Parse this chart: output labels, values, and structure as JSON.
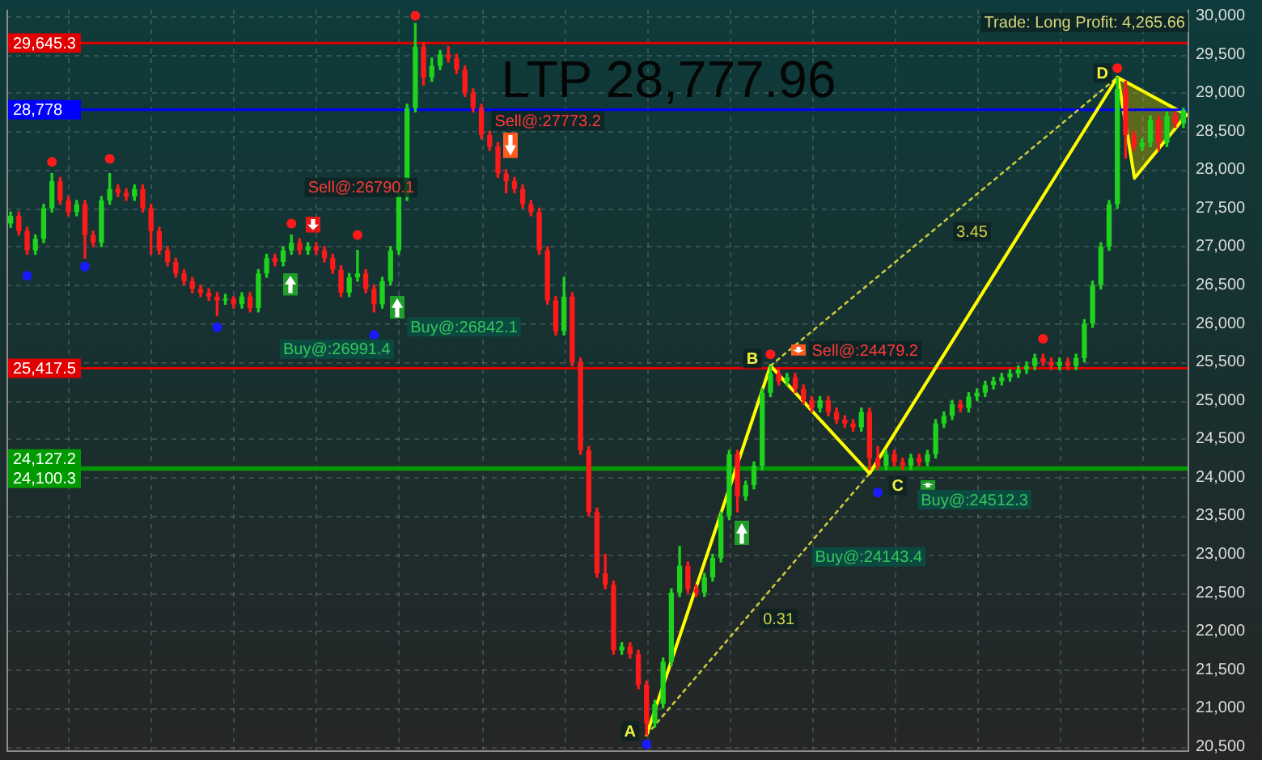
{
  "chart_data": {
    "type": "candlestick",
    "title": "LTP 28,777.96",
    "categories": [
      null,
      null,
      null,
      null,
      null,
      null,
      null,
      null,
      null,
      null,
      null,
      null,
      null,
      null,
      null,
      null,
      null,
      null,
      null,
      null,
      null,
      null,
      null,
      null,
      null,
      null,
      null,
      null,
      null,
      null,
      null,
      null,
      null,
      null,
      null,
      null,
      null,
      null,
      null,
      null,
      null,
      null,
      null,
      null,
      null,
      null,
      null,
      null,
      null,
      null,
      null,
      null,
      null,
      null,
      null,
      null,
      null,
      null,
      null,
      null,
      null,
      null,
      null,
      null,
      null,
      null,
      null,
      null,
      null,
      null,
      null,
      null,
      null,
      null,
      null,
      null,
      null,
      null,
      null,
      null,
      null,
      null,
      null,
      null,
      null,
      null,
      null,
      null,
      null,
      null,
      null,
      null,
      null,
      null,
      null,
      null,
      null,
      null,
      null,
      null,
      null,
      null,
      null,
      null,
      null,
      null,
      null,
      null,
      null,
      null,
      null,
      null,
      null,
      null,
      null,
      null,
      null,
      null,
      null,
      null,
      null,
      null,
      null,
      null,
      null,
      null,
      null,
      null,
      null,
      null,
      null,
      null,
      null,
      null,
      null,
      null,
      null,
      null,
      null,
      null,
      null,
      null,
      null
    ],
    "ohlc": [
      [
        27300,
        27450,
        27250,
        27400
      ],
      [
        27400,
        27450,
        27150,
        27200
      ],
      [
        27200,
        27250,
        26900,
        26950
      ],
      [
        26950,
        27150,
        26900,
        27100
      ],
      [
        27100,
        27550,
        27050,
        27500
      ],
      [
        27500,
        27950,
        27450,
        27850
      ],
      [
        27850,
        27900,
        27550,
        27600
      ],
      [
        27600,
        27650,
        27400,
        27450
      ],
      [
        27450,
        27600,
        27400,
        27550
      ],
      [
        27550,
        27600,
        26850,
        27150
      ],
      [
        27150,
        27200,
        27000,
        27050
      ],
      [
        27050,
        27650,
        27000,
        27600
      ],
      [
        27600,
        27950,
        27550,
        27750
      ],
      [
        27750,
        27800,
        27650,
        27700
      ],
      [
        27700,
        27750,
        27600,
        27650
      ],
      [
        27650,
        27800,
        27600,
        27750
      ],
      [
        27750,
        27800,
        27450,
        27500
      ],
      [
        27500,
        27550,
        26900,
        27200
      ],
      [
        27200,
        27250,
        26900,
        26950
      ],
      [
        26950,
        27000,
        26750,
        26800
      ],
      [
        26800,
        26850,
        26600,
        26650
      ],
      [
        26650,
        26700,
        26500,
        26550
      ],
      [
        26550,
        26600,
        26400,
        26450
      ],
      [
        26450,
        26500,
        26350,
        26400
      ],
      [
        26400,
        26450,
        26300,
        26350
      ],
      [
        26350,
        26400,
        26100,
        26300
      ],
      [
        26300,
        26380,
        26250,
        26320
      ],
      [
        26320,
        26350,
        26200,
        26250
      ],
      [
        26250,
        26400,
        26200,
        26350
      ],
      [
        26350,
        26400,
        26150,
        26200
      ],
      [
        26200,
        26700,
        26150,
        26650
      ],
      [
        26650,
        26900,
        26600,
        26850
      ],
      [
        26850,
        26900,
        26750,
        26800
      ],
      [
        26800,
        27000,
        26750,
        26950
      ],
      [
        26950,
        27150,
        26900,
        27050
      ],
      [
        27050,
        27100,
        26900,
        26950
      ],
      [
        26950,
        27050,
        26900,
        27000
      ],
      [
        27000,
        27050,
        26900,
        26950
      ],
      [
        26950,
        27000,
        26800,
        26850
      ],
      [
        26850,
        26900,
        26650,
        26700
      ],
      [
        26700,
        26750,
        26350,
        26400
      ],
      [
        26400,
        26650,
        26350,
        26600
      ],
      [
        26600,
        26950,
        26550,
        26650
      ],
      [
        26650,
        26700,
        26400,
        26450
      ],
      [
        26450,
        26500,
        26150,
        26250
      ],
      [
        26250,
        26600,
        26200,
        26550
      ],
      [
        26550,
        27000,
        26500,
        26950
      ],
      [
        26950,
        27700,
        26900,
        27650
      ],
      [
        27650,
        28850,
        27600,
        28800
      ],
      [
        28800,
        29900,
        28750,
        29600
      ],
      [
        29600,
        29650,
        29100,
        29200
      ],
      [
        29200,
        29450,
        29150,
        29350
      ],
      [
        29350,
        29550,
        29300,
        29500
      ],
      [
        29500,
        29600,
        29400,
        29450
      ],
      [
        29450,
        29500,
        29250,
        29300
      ],
      [
        29300,
        29350,
        28950,
        29000
      ],
      [
        29000,
        29050,
        28750,
        28800
      ],
      [
        28800,
        28850,
        28400,
        28450
      ],
      [
        28450,
        28500,
        28250,
        28300
      ],
      [
        28300,
        28350,
        27900,
        27950
      ],
      [
        27950,
        28000,
        27700,
        27850
      ],
      [
        27850,
        27900,
        27700,
        27750
      ],
      [
        27750,
        27800,
        27500,
        27550
      ],
      [
        27550,
        27600,
        27400,
        27450
      ],
      [
        27450,
        27500,
        26900,
        26950
      ],
      [
        26950,
        27000,
        26250,
        26300
      ],
      [
        26300,
        26350,
        25850,
        25900
      ],
      [
        25900,
        26600,
        25850,
        26350
      ],
      [
        26350,
        26400,
        25450,
        25500
      ],
      [
        25500,
        25550,
        24300,
        24350
      ],
      [
        24350,
        24400,
        23500,
        23550
      ],
      [
        23550,
        23600,
        22700,
        22750
      ],
      [
        22750,
        23000,
        22550,
        22600
      ],
      [
        22600,
        22650,
        21700,
        21750
      ],
      [
        21750,
        21850,
        21700,
        21800
      ],
      [
        21800,
        21850,
        21650,
        21700
      ],
      [
        21700,
        21750,
        21250,
        21300
      ],
      [
        21300,
        21350,
        20650,
        20800
      ],
      [
        20800,
        21100,
        20750,
        21050
      ],
      [
        21050,
        21650,
        21000,
        21600
      ],
      [
        21600,
        22550,
        21550,
        22500
      ],
      [
        22500,
        23100,
        22450,
        22850
      ],
      [
        22850,
        22900,
        22500,
        22550
      ],
      [
        22550,
        22600,
        22450,
        22500
      ],
      [
        22500,
        22750,
        22450,
        22700
      ],
      [
        22700,
        23000,
        22650,
        22950
      ],
      [
        22950,
        23550,
        22900,
        23500
      ],
      [
        23500,
        24350,
        23450,
        24300
      ],
      [
        24300,
        24350,
        23550,
        23750
      ],
      [
        23750,
        23950,
        23700,
        23900
      ],
      [
        23900,
        24200,
        23850,
        24150
      ],
      [
        24150,
        25150,
        24100,
        25100
      ],
      [
        25100,
        25450,
        25050,
        25350
      ],
      [
        25350,
        25400,
        25200,
        25250
      ],
      [
        25250,
        25350,
        25200,
        25300
      ],
      [
        25300,
        25350,
        25100,
        25150
      ],
      [
        25150,
        25200,
        24950,
        25000
      ],
      [
        25000,
        25050,
        24850,
        24900
      ],
      [
        24900,
        25050,
        24850,
        25000
      ],
      [
        25000,
        25050,
        24800,
        24850
      ],
      [
        24850,
        24900,
        24700,
        24750
      ],
      [
        24750,
        24800,
        24650,
        24700
      ],
      [
        24700,
        24750,
        24600,
        24650
      ],
      [
        24650,
        24900,
        24600,
        24850
      ],
      [
        24850,
        24900,
        24100,
        24250
      ],
      [
        24250,
        24400,
        24100,
        24150
      ],
      [
        24150,
        24350,
        24100,
        24300
      ],
      [
        24300,
        24350,
        24150,
        24200
      ],
      [
        24200,
        24250,
        24100,
        24150
      ],
      [
        24150,
        24300,
        24100,
        24250
      ],
      [
        24250,
        24300,
        24150,
        24200
      ],
      [
        24200,
        24350,
        24150,
        24300
      ],
      [
        24300,
        24750,
        24250,
        24700
      ],
      [
        24700,
        24850,
        24650,
        24800
      ],
      [
        24800,
        25000,
        24750,
        24950
      ],
      [
        24950,
        25000,
        24850,
        24900
      ],
      [
        24900,
        25100,
        24850,
        25050
      ],
      [
        25050,
        25150,
        25000,
        25100
      ],
      [
        25100,
        25250,
        25050,
        25200
      ],
      [
        25200,
        25300,
        25150,
        25250
      ],
      [
        25250,
        25350,
        25200,
        25300
      ],
      [
        25300,
        25400,
        25250,
        25350
      ],
      [
        25350,
        25450,
        25300,
        25400
      ],
      [
        25400,
        25500,
        25350,
        25450
      ],
      [
        25450,
        25600,
        25400,
        25550
      ],
      [
        25550,
        25600,
        25450,
        25500
      ],
      [
        25500,
        25550,
        25400,
        25450
      ],
      [
        25450,
        25550,
        25400,
        25500
      ],
      [
        25500,
        25550,
        25400,
        25450
      ],
      [
        25450,
        25600,
        25400,
        25550
      ],
      [
        25550,
        26050,
        25500,
        26000
      ],
      [
        26000,
        26550,
        25950,
        26500
      ],
      [
        26500,
        27050,
        26450,
        27000
      ],
      [
        27000,
        27600,
        26950,
        27550
      ],
      [
        27550,
        29200,
        27500,
        29050
      ],
      [
        29050,
        29150,
        28150,
        28450
      ],
      [
        28450,
        28500,
        28250,
        28300
      ],
      [
        28300,
        28400,
        28250,
        28350
      ],
      [
        28350,
        28700,
        28300,
        28650
      ],
      [
        28650,
        28700,
        28250,
        28350
      ],
      [
        28350,
        28750,
        28300,
        28700
      ],
      [
        28700,
        28750,
        28550,
        28600
      ],
      [
        28600,
        28800,
        28550,
        28778
      ]
    ],
    "colors": [
      "#1ed21e",
      "#ff1a1a",
      "#ff1a1a",
      "#1ed21e",
      "#1ed21e",
      "#1ed21e",
      "#ff1a1a",
      "#ff1a1a",
      "#1ed21e",
      "#ff1a1a",
      "#ff1a1a",
      "#1ed21e",
      "#1ed21e",
      "#ff1a1a",
      "#ff1a1a",
      "#1ed21e",
      "#ff1a1a",
      "#ff1a1a",
      "#ff1a1a",
      "#ff1a1a",
      "#ff1a1a",
      "#ff1a1a",
      "#ff1a1a",
      "#ff1a1a",
      "#ff1a1a",
      "#ff1a1a",
      "#1ed21e",
      "#ff1a1a",
      "#1ed21e",
      "#ff1a1a",
      "#1ed21e",
      "#1ed21e",
      "#ff1a1a",
      "#1ed21e",
      "#1ed21e",
      "#ff1a1a",
      "#1ed21e",
      "#ff1a1a",
      "#ff1a1a",
      "#ff1a1a",
      "#ff1a1a",
      "#1ed21e",
      "#1ed21e",
      "#ff1a1a",
      "#ff1a1a",
      "#1ed21e",
      "#1ed21e",
      "#1ed21e",
      "#1ed21e",
      "#1ed21e",
      "#ff1a1a",
      "#1ed21e",
      "#1ed21e",
      "#ff1a1a",
      "#ff1a1a",
      "#ff1a1a",
      "#ff1a1a",
      "#ff1a1a",
      "#ff1a1a",
      "#ff1a1a",
      "#ff1a1a",
      "#ff1a1a",
      "#ff1a1a",
      "#ff1a1a",
      "#ff1a1a",
      "#ff1a1a",
      "#ff1a1a",
      "#1ed21e",
      "#ff1a1a",
      "#ff1a1a",
      "#ff1a1a",
      "#ff1a1a",
      "#ff1a1a",
      "#ff1a1a",
      "#1ed21e",
      "#ff1a1a",
      "#ff1a1a",
      "#ff1a1a",
      "#1ed21e",
      "#1ed21e",
      "#1ed21e",
      "#1ed21e",
      "#ff1a1a",
      "#ff1a1a",
      "#1ed21e",
      "#1ed21e",
      "#1ed21e",
      "#1ed21e",
      "#ff1a1a",
      "#1ed21e",
      "#1ed21e",
      "#1ed21e",
      "#1ed21e",
      "#ff1a1a",
      "#1ed21e",
      "#ff1a1a",
      "#ff1a1a",
      "#ff1a1a",
      "#1ed21e",
      "#ff1a1a",
      "#ff1a1a",
      "#ff1a1a",
      "#ff1a1a",
      "#1ed21e",
      "#ff1a1a",
      "#ff1a1a",
      "#1ed21e",
      "#ff1a1a",
      "#ff1a1a",
      "#1ed21e",
      "#ff1a1a",
      "#1ed21e",
      "#1ed21e",
      "#1ed21e",
      "#1ed21e",
      "#ff1a1a",
      "#1ed21e",
      "#1ed21e",
      "#1ed21e",
      "#1ed21e",
      "#1ed21e",
      "#1ed21e",
      "#1ed21e",
      "#1ed21e",
      "#1ed21e",
      "#ff1a1a",
      "#ff1a1a",
      "#1ed21e",
      "#ff1a1a",
      "#1ed21e",
      "#1ed21e",
      "#1ed21e",
      "#1ed21e",
      "#1ed21e",
      "#1ed21e",
      "#ff1a1a",
      "#ff1a1a",
      "#1ed21e",
      "#1ed21e",
      "#ff1a1a",
      "#1ed21e",
      "#ff1a1a",
      "#1ed21e"
    ],
    "series": [
      {
        "type": "scatter",
        "color": "#ff1a1a",
        "marker": "circle",
        "values": [
          null,
          null,
          null,
          null,
          null,
          28100,
          null,
          null,
          null,
          null,
          null,
          null,
          28140,
          null,
          null,
          null,
          null,
          null,
          null,
          null,
          null,
          null,
          null,
          null,
          null,
          null,
          null,
          null,
          null,
          null,
          null,
          null,
          null,
          null,
          27300,
          null,
          null,
          null,
          null,
          null,
          null,
          null,
          27150,
          null,
          null,
          null,
          null,
          null,
          null,
          30000,
          null,
          null,
          null,
          null,
          null,
          null,
          null,
          null,
          null,
          null,
          null,
          null,
          null,
          null,
          null,
          null,
          null,
          null,
          null,
          null,
          null,
          null,
          null,
          null,
          null,
          null,
          null,
          null,
          null,
          null,
          null,
          null,
          null,
          null,
          null,
          null,
          null,
          null,
          null,
          null,
          null,
          null,
          25600,
          null,
          null,
          null,
          null,
          null,
          null,
          null,
          null,
          null,
          null,
          null,
          null,
          null,
          null,
          null,
          null,
          null,
          null,
          null,
          null,
          null,
          null,
          null,
          null,
          null,
          null,
          null,
          null,
          null,
          null,
          null,
          null,
          25800,
          null,
          null,
          null,
          null,
          null,
          null,
          null,
          null,
          29320,
          null,
          null,
          null,
          null,
          null,
          null,
          null,
          null
        ]
      },
      {
        "type": "scatter",
        "color": "#1a1aff",
        "marker": "circle",
        "values": [
          null,
          null,
          26620,
          null,
          null,
          null,
          null,
          null,
          null,
          26740,
          null,
          null,
          null,
          null,
          null,
          null,
          null,
          null,
          null,
          null,
          null,
          null,
          null,
          null,
          null,
          25950,
          null,
          null,
          null,
          null,
          null,
          null,
          null,
          null,
          null,
          null,
          null,
          null,
          null,
          null,
          null,
          null,
          null,
          null,
          25850,
          null,
          null,
          null,
          null,
          null,
          null,
          null,
          null,
          null,
          null,
          null,
          null,
          null,
          null,
          null,
          null,
          null,
          null,
          null,
          null,
          null,
          null,
          null,
          null,
          null,
          null,
          null,
          null,
          null,
          null,
          null,
          null,
          20530,
          null,
          null,
          null,
          null,
          null,
          null,
          null,
          null,
          null,
          null,
          null,
          null,
          null,
          null,
          null,
          null,
          null,
          null,
          null,
          null,
          null,
          null,
          null,
          null,
          null,
          null,
          null,
          23800,
          null,
          null,
          null,
          null,
          null,
          null,
          null,
          null,
          null,
          null,
          null,
          null,
          null,
          null,
          null,
          null,
          null,
          null,
          null,
          null,
          null,
          null,
          null,
          null,
          null,
          null,
          null,
          null,
          null,
          null,
          null,
          null,
          null,
          null,
          null,
          null,
          null
        ]
      },
      {
        "type": "line",
        "color": "#ffff00",
        "marker": "none",
        "line_style": "solid",
        "values": [
          null,
          null,
          null,
          null,
          null,
          null,
          null,
          null,
          null,
          null,
          null,
          null,
          null,
          null,
          null,
          null,
          null,
          null,
          null,
          null,
          null,
          null,
          null,
          null,
          null,
          null,
          null,
          null,
          null,
          null,
          null,
          null,
          null,
          null,
          null,
          null,
          null,
          null,
          null,
          null,
          null,
          null,
          null,
          null,
          null,
          null,
          null,
          null,
          null,
          null,
          null,
          null,
          null,
          null,
          null,
          null,
          null,
          null,
          null,
          null,
          null,
          null,
          null,
          null,
          null,
          null,
          null,
          null,
          null,
          null,
          null,
          null,
          null,
          null,
          null,
          null,
          null,
          20650,
          null,
          null,
          null,
          null,
          null,
          null,
          null,
          null,
          null,
          null,
          null,
          null,
          null,
          null,
          25450,
          null,
          null,
          null,
          null,
          null,
          null,
          null,
          null,
          null,
          null,
          null,
          24050,
          null,
          null,
          null,
          null,
          null,
          null,
          null,
          null,
          null,
          null,
          null,
          null,
          null,
          null,
          null,
          null,
          null,
          null,
          null,
          null,
          null,
          null,
          null,
          null,
          null,
          null,
          null,
          null,
          null,
          29200,
          null,
          null,
          null,
          null,
          null,
          null,
          null,
          null
        ]
      },
      {
        "type": "line",
        "color": "#c8c83c",
        "marker": "none",
        "line_style": "dotted",
        "values": [
          null,
          null,
          null,
          null,
          null,
          null,
          null,
          null,
          null,
          null,
          null,
          null,
          null,
          null,
          null,
          null,
          null,
          null,
          null,
          null,
          null,
          null,
          null,
          null,
          null,
          null,
          null,
          null,
          null,
          null,
          null,
          null,
          null,
          null,
          null,
          null,
          null,
          null,
          null,
          null,
          null,
          null,
          null,
          null,
          null,
          null,
          null,
          null,
          null,
          null,
          null,
          null,
          null,
          null,
          null,
          null,
          null,
          null,
          null,
          null,
          null,
          null,
          null,
          null,
          null,
          null,
          null,
          null,
          null,
          null,
          null,
          null,
          null,
          null,
          null,
          null,
          null,
          20650,
          null,
          null,
          null,
          null,
          null,
          null,
          null,
          null,
          null,
          null,
          null,
          null,
          null,
          null,
          null,
          null,
          null,
          null,
          null,
          null,
          null,
          null,
          null,
          null,
          null,
          null,
          24050,
          null,
          null,
          null,
          null,
          null,
          null,
          null,
          null,
          null,
          null,
          null,
          null,
          null,
          null,
          null,
          null,
          null,
          null,
          null,
          null,
          null,
          null,
          null,
          null,
          null,
          null,
          null,
          null,
          null,
          null,
          null,
          null,
          null,
          null,
          null,
          null,
          null,
          null
        ]
      },
      {
        "type": "line",
        "color": "#c8c83c",
        "marker": "none",
        "line_style": "dotted",
        "values": [
          null,
          null,
          null,
          null,
          null,
          null,
          null,
          null,
          null,
          null,
          null,
          null,
          null,
          null,
          null,
          null,
          null,
          null,
          null,
          null,
          null,
          null,
          null,
          null,
          null,
          null,
          null,
          null,
          null,
          null,
          null,
          null,
          null,
          null,
          null,
          null,
          null,
          null,
          null,
          null,
          null,
          null,
          null,
          null,
          null,
          null,
          null,
          null,
          null,
          null,
          null,
          null,
          null,
          null,
          null,
          null,
          null,
          null,
          null,
          null,
          null,
          null,
          null,
          null,
          null,
          null,
          null,
          null,
          null,
          null,
          null,
          null,
          null,
          null,
          null,
          null,
          null,
          null,
          null,
          null,
          null,
          null,
          null,
          null,
          null,
          null,
          null,
          null,
          null,
          null,
          null,
          null,
          25450,
          null,
          null,
          null,
          null,
          null,
          null,
          null,
          null,
          null,
          null,
          null,
          null,
          null,
          null,
          null,
          null,
          null,
          null,
          null,
          null,
          null,
          null,
          null,
          null,
          null,
          null,
          null,
          null,
          null,
          null,
          null,
          null,
          null,
          null,
          null,
          null,
          null,
          null,
          null,
          null,
          null,
          29200,
          null,
          null,
          null,
          null,
          null,
          null,
          null,
          null
        ]
      }
    ],
    "ylim": [
      20450,
      30080
    ],
    "yticks": [
      {
        "value": 20500,
        "label": "20,500"
      },
      {
        "value": 21000,
        "label": "21,000"
      },
      {
        "value": 21500,
        "label": "21,500"
      },
      {
        "value": 22000,
        "label": "22,000"
      },
      {
        "value": 22500,
        "label": "22,500"
      },
      {
        "value": 23000,
        "label": "23,000"
      },
      {
        "value": 23500,
        "label": "23,500"
      },
      {
        "value": 24000,
        "label": "24,000"
      },
      {
        "value": 24500,
        "label": "24,500"
      },
      {
        "value": 25000,
        "label": "25,000"
      },
      {
        "value": 25500,
        "label": "25,500"
      },
      {
        "value": 26000,
        "label": "26,000"
      },
      {
        "value": 26500,
        "label": "26,500"
      },
      {
        "value": 27000,
        "label": "27,000"
      },
      {
        "value": 27500,
        "label": "27,500"
      },
      {
        "value": 28000,
        "label": "28,000"
      },
      {
        "value": 28500,
        "label": "28,500"
      },
      {
        "value": 29000,
        "label": "29,000"
      },
      {
        "value": 29500,
        "label": "29,500"
      },
      {
        "value": 30000,
        "label": "30,000"
      }
    ],
    "grid": true,
    "legend": false,
    "tick_labels": "y",
    "ref_lines": [
      {
        "axis": "y",
        "value": 29645.3,
        "label": "29,645.3",
        "color": "#e00000"
      },
      {
        "axis": "y",
        "value": 28778,
        "label": "28,778",
        "color": "#0000ff"
      },
      {
        "axis": "y",
        "value": 25417.5,
        "label": "25,417.5",
        "color": "#e00000"
      },
      {
        "axis": "y",
        "value": 24127.2,
        "label": "24,127.2",
        "color": "#009a00"
      },
      {
        "axis": "y",
        "value": 24100.3,
        "label": "24,100.3",
        "color": "#009a00"
      }
    ],
    "annotations": [
      "Trade: Long Profit: 4,265.66",
      "Sell@:26790.1",
      "Buy@:26991.4",
      "Buy@:26842.1",
      "Sell@:27773.2",
      "Sell@:24479.2",
      "Buy@:24143.4",
      "Buy@:24512.3",
      "A",
      "B",
      "C",
      "D",
      "3.45",
      "0.31"
    ]
  }
}
